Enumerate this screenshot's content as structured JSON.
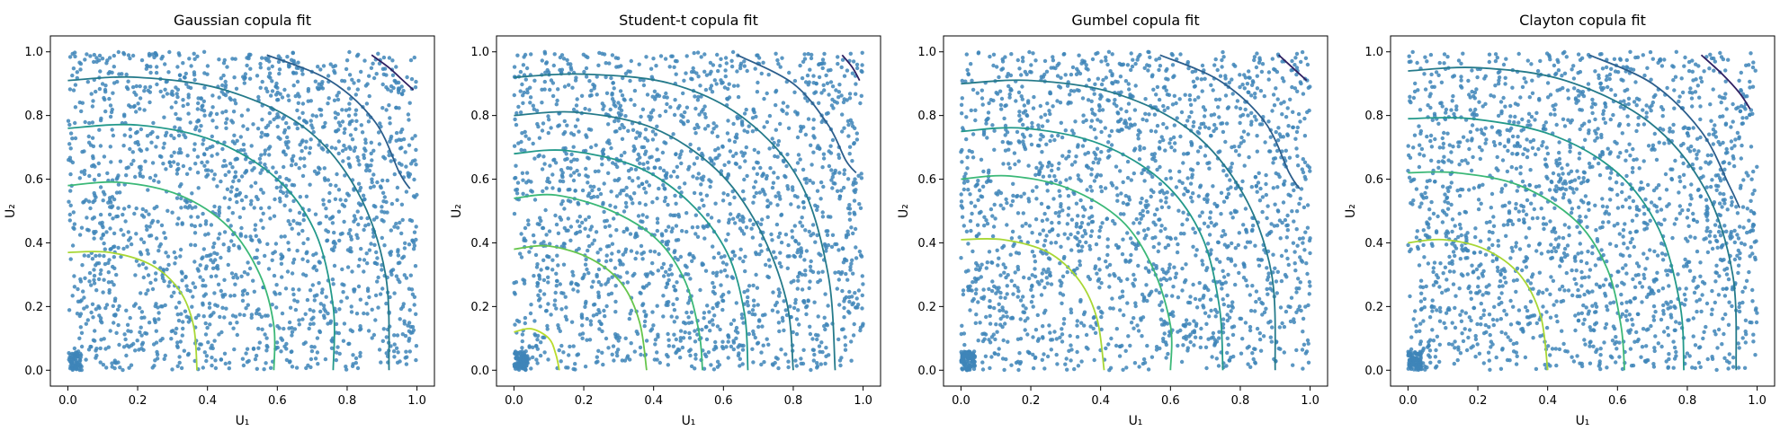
{
  "figure": {
    "background": "#ffffff",
    "scatter_color": "#3e85b8",
    "contour_colormap": "viridis"
  },
  "chart_data": [
    {
      "type": "scatter",
      "title": "Gaussian copula fit",
      "xlabel": "U₁",
      "ylabel": "U₂",
      "xlim": [
        -0.05,
        1.05
      ],
      "ylim": [
        -0.05,
        1.05
      ],
      "xticks": [
        "0.0",
        "0.2",
        "0.4",
        "0.6",
        "0.8",
        "1.0"
      ],
      "yticks": [
        "0.0",
        "0.2",
        "0.4",
        "0.6",
        "0.8",
        "1.0"
      ],
      "grid": false,
      "point_count": 2000,
      "contours": [
        {
          "level": 1,
          "color": "#2f1f61",
          "points": [
            [
              0.87,
              0.99
            ],
            [
              0.92,
              0.95
            ],
            [
              0.96,
              0.91
            ],
            [
              0.99,
              0.88
            ]
          ]
        },
        {
          "level": 2,
          "color": "#2c5e8c",
          "points": [
            [
              0.57,
              0.99
            ],
            [
              0.75,
              0.91
            ],
            [
              0.88,
              0.78
            ],
            [
              0.95,
              0.62
            ],
            [
              0.98,
              0.57
            ]
          ]
        },
        {
          "level": 3,
          "color": "#257a8a",
          "points": [
            [
              0.0,
              0.91
            ],
            [
              0.2,
              0.92
            ],
            [
              0.45,
              0.88
            ],
            [
              0.68,
              0.76
            ],
            [
              0.83,
              0.56
            ],
            [
              0.91,
              0.3
            ],
            [
              0.92,
              0.0
            ]
          ]
        },
        {
          "level": 4,
          "color": "#23998a",
          "points": [
            [
              0.0,
              0.76
            ],
            [
              0.2,
              0.77
            ],
            [
              0.42,
              0.72
            ],
            [
              0.6,
              0.6
            ],
            [
              0.71,
              0.43
            ],
            [
              0.76,
              0.2
            ],
            [
              0.76,
              0.0
            ]
          ]
        },
        {
          "level": 5,
          "color": "#3bb877",
          "points": [
            [
              0.0,
              0.58
            ],
            [
              0.15,
              0.59
            ],
            [
              0.32,
              0.55
            ],
            [
              0.46,
              0.45
            ],
            [
              0.55,
              0.3
            ],
            [
              0.59,
              0.14
            ],
            [
              0.59,
              0.0
            ]
          ]
        },
        {
          "level": 6,
          "color": "#a8d734",
          "points": [
            [
              0.0,
              0.37
            ],
            [
              0.12,
              0.37
            ],
            [
              0.24,
              0.33
            ],
            [
              0.32,
              0.25
            ],
            [
              0.36,
              0.14
            ],
            [
              0.37,
              0.0
            ]
          ]
        }
      ]
    },
    {
      "type": "scatter",
      "title": "Student-t copula fit",
      "xlabel": "U₁",
      "ylabel": "U₂",
      "xlim": [
        -0.05,
        1.05
      ],
      "ylim": [
        -0.05,
        1.05
      ],
      "xticks": [
        "0.0",
        "0.2",
        "0.4",
        "0.6",
        "0.8",
        "1.0"
      ],
      "yticks": [
        "0.0",
        "0.2",
        "0.4",
        "0.6",
        "0.8",
        "1.0"
      ],
      "grid": false,
      "point_count": 2000,
      "contours": [
        {
          "level": 1,
          "color": "#2f1f61",
          "points": [
            [
              0.94,
              0.99
            ],
            [
              0.97,
              0.95
            ],
            [
              0.99,
              0.91
            ]
          ]
        },
        {
          "level": 2,
          "color": "#2c5e8c",
          "points": [
            [
              0.64,
              0.99
            ],
            [
              0.8,
              0.9
            ],
            [
              0.9,
              0.77
            ],
            [
              0.95,
              0.66
            ],
            [
              0.98,
              0.62
            ]
          ]
        },
        {
          "level": 3,
          "color": "#257a8a",
          "points": [
            [
              0.0,
              0.92
            ],
            [
              0.2,
              0.93
            ],
            [
              0.45,
              0.9
            ],
            [
              0.66,
              0.79
            ],
            [
              0.82,
              0.59
            ],
            [
              0.9,
              0.3
            ],
            [
              0.92,
              0.0
            ]
          ]
        },
        {
          "level": 4,
          "color": "#257a8a",
          "points": [
            [
              0.0,
              0.8
            ],
            [
              0.18,
              0.81
            ],
            [
              0.4,
              0.76
            ],
            [
              0.58,
              0.63
            ],
            [
              0.7,
              0.45
            ],
            [
              0.78,
              0.22
            ],
            [
              0.8,
              0.0
            ]
          ]
        },
        {
          "level": 5,
          "color": "#23998a",
          "points": [
            [
              0.0,
              0.68
            ],
            [
              0.15,
              0.69
            ],
            [
              0.35,
              0.64
            ],
            [
              0.5,
              0.53
            ],
            [
              0.61,
              0.37
            ],
            [
              0.66,
              0.18
            ],
            [
              0.67,
              0.0
            ]
          ]
        },
        {
          "level": 6,
          "color": "#3bb877",
          "points": [
            [
              0.0,
              0.54
            ],
            [
              0.12,
              0.55
            ],
            [
              0.28,
              0.5
            ],
            [
              0.41,
              0.41
            ],
            [
              0.49,
              0.28
            ],
            [
              0.53,
              0.12
            ],
            [
              0.54,
              0.0
            ]
          ]
        },
        {
          "level": 7,
          "color": "#66c64c",
          "points": [
            [
              0.0,
              0.38
            ],
            [
              0.1,
              0.39
            ],
            [
              0.22,
              0.35
            ],
            [
              0.31,
              0.27
            ],
            [
              0.36,
              0.15
            ],
            [
              0.38,
              0.0
            ]
          ]
        },
        {
          "level": 8,
          "color": "#b9dc2b",
          "points": [
            [
              0.0,
              0.12
            ],
            [
              0.05,
              0.13
            ],
            [
              0.1,
              0.1
            ],
            [
              0.12,
              0.05
            ],
            [
              0.13,
              0.0
            ]
          ]
        }
      ]
    },
    {
      "type": "scatter",
      "title": "Gumbel copula fit",
      "xlabel": "U₁",
      "ylabel": "U₂",
      "xlim": [
        -0.05,
        1.05
      ],
      "ylim": [
        -0.05,
        1.05
      ],
      "xticks": [
        "0.0",
        "0.2",
        "0.4",
        "0.6",
        "0.8",
        "1.0"
      ],
      "yticks": [
        "0.0",
        "0.2",
        "0.4",
        "0.6",
        "0.8",
        "1.0"
      ],
      "grid": false,
      "point_count": 2000,
      "contours": [
        {
          "level": 1,
          "color": "#2f1f61",
          "points": [
            [
              0.91,
              0.99
            ],
            [
              0.95,
              0.95
            ],
            [
              0.99,
              0.91
            ]
          ]
        },
        {
          "level": 2,
          "color": "#2c5e8c",
          "points": [
            [
              0.57,
              0.99
            ],
            [
              0.74,
              0.91
            ],
            [
              0.87,
              0.78
            ],
            [
              0.94,
              0.62
            ],
            [
              0.97,
              0.57
            ]
          ]
        },
        {
          "level": 3,
          "color": "#257a8a",
          "points": [
            [
              0.0,
              0.9
            ],
            [
              0.2,
              0.91
            ],
            [
              0.44,
              0.87
            ],
            [
              0.66,
              0.75
            ],
            [
              0.81,
              0.55
            ],
            [
              0.89,
              0.3
            ],
            [
              0.9,
              0.0
            ]
          ]
        },
        {
          "level": 4,
          "color": "#23998a",
          "points": [
            [
              0.0,
              0.75
            ],
            [
              0.18,
              0.76
            ],
            [
              0.4,
              0.71
            ],
            [
              0.58,
              0.59
            ],
            [
              0.69,
              0.42
            ],
            [
              0.74,
              0.2
            ],
            [
              0.75,
              0.0
            ]
          ]
        },
        {
          "level": 5,
          "color": "#3bb877",
          "points": [
            [
              0.0,
              0.6
            ],
            [
              0.14,
              0.61
            ],
            [
              0.31,
              0.57
            ],
            [
              0.46,
              0.47
            ],
            [
              0.55,
              0.32
            ],
            [
              0.6,
              0.14
            ],
            [
              0.6,
              0.0
            ]
          ]
        },
        {
          "level": 6,
          "color": "#a8d734",
          "points": [
            [
              0.0,
              0.41
            ],
            [
              0.12,
              0.41
            ],
            [
              0.25,
              0.37
            ],
            [
              0.34,
              0.28
            ],
            [
              0.39,
              0.16
            ],
            [
              0.41,
              0.0
            ]
          ]
        }
      ]
    },
    {
      "type": "scatter",
      "title": "Clayton copula fit",
      "xlabel": "U₁",
      "ylabel": "U₂",
      "xlim": [
        -0.05,
        1.05
      ],
      "ylim": [
        -0.05,
        1.05
      ],
      "xticks": [
        "0.0",
        "0.2",
        "0.4",
        "0.6",
        "0.8",
        "1.0"
      ],
      "yticks": [
        "0.0",
        "0.2",
        "0.4",
        "0.6",
        "0.8",
        "1.0"
      ],
      "grid": false,
      "point_count": 2000,
      "contours": [
        {
          "level": 1,
          "color": "#2f1f61",
          "points": [
            [
              0.84,
              0.99
            ],
            [
              0.9,
              0.93
            ],
            [
              0.95,
              0.87
            ],
            [
              0.98,
              0.82
            ]
          ]
        },
        {
          "level": 2,
          "color": "#2c5e8c",
          "points": [
            [
              0.52,
              0.99
            ],
            [
              0.7,
              0.9
            ],
            [
              0.84,
              0.75
            ],
            [
              0.92,
              0.58
            ],
            [
              0.95,
              0.51
            ]
          ]
        },
        {
          "level": 3,
          "color": "#257a8a",
          "points": [
            [
              0.0,
              0.94
            ],
            [
              0.2,
              0.95
            ],
            [
              0.45,
              0.91
            ],
            [
              0.69,
              0.78
            ],
            [
              0.85,
              0.57
            ],
            [
              0.93,
              0.3
            ],
            [
              0.94,
              0.0
            ]
          ]
        },
        {
          "level": 4,
          "color": "#23998a",
          "points": [
            [
              0.0,
              0.79
            ],
            [
              0.18,
              0.79
            ],
            [
              0.41,
              0.74
            ],
            [
              0.6,
              0.62
            ],
            [
              0.72,
              0.44
            ],
            [
              0.78,
              0.2
            ],
            [
              0.79,
              0.0
            ]
          ]
        },
        {
          "level": 5,
          "color": "#3bb877",
          "points": [
            [
              0.0,
              0.62
            ],
            [
              0.14,
              0.62
            ],
            [
              0.32,
              0.58
            ],
            [
              0.48,
              0.47
            ],
            [
              0.57,
              0.32
            ],
            [
              0.61,
              0.14
            ],
            [
              0.62,
              0.0
            ]
          ]
        },
        {
          "level": 6,
          "color": "#a8d734",
          "points": [
            [
              0.0,
              0.4
            ],
            [
              0.1,
              0.41
            ],
            [
              0.22,
              0.38
            ],
            [
              0.32,
              0.3
            ],
            [
              0.38,
              0.17
            ],
            [
              0.4,
              0.0
            ]
          ]
        }
      ]
    }
  ]
}
